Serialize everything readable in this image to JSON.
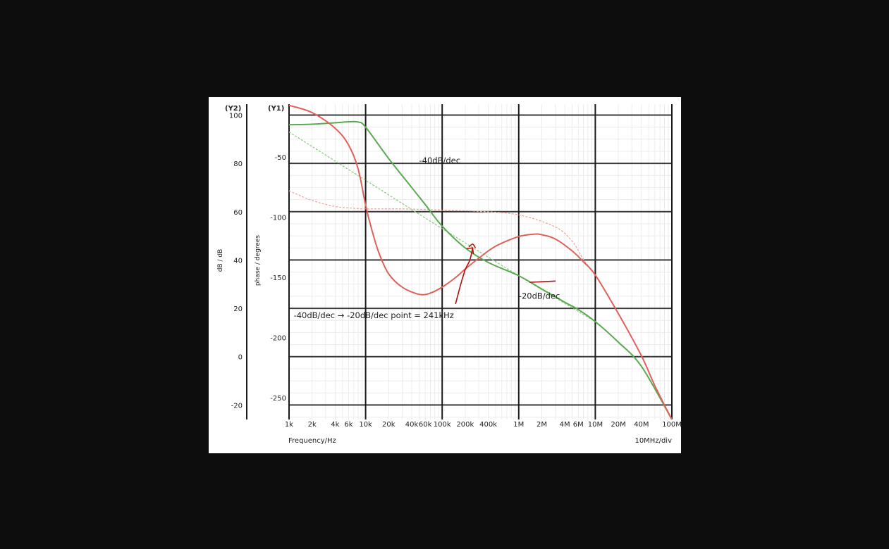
{
  "chart_data": {
    "type": "line",
    "x_scale": "log",
    "xlabel": "Frequency/Hz",
    "x_division_label": "10MHz/div",
    "xlim": [
      1000,
      100000000
    ],
    "x_ticks": [
      {
        "v": 1000,
        "label": "1k",
        "major": true
      },
      {
        "v": 2000,
        "label": "2k",
        "major": false
      },
      {
        "v": 4000,
        "label": "4k",
        "major": false
      },
      {
        "v": 6000,
        "label": "6k",
        "major": false
      },
      {
        "v": 10000,
        "label": "10k",
        "major": true
      },
      {
        "v": 20000,
        "label": "20k",
        "major": false
      },
      {
        "v": 40000,
        "label": "40k",
        "major": false
      },
      {
        "v": 60000,
        "label": "60k",
        "major": false
      },
      {
        "v": 100000,
        "label": "100k",
        "major": true
      },
      {
        "v": 200000,
        "label": "200k",
        "major": false
      },
      {
        "v": 400000,
        "label": "400k",
        "major": false
      },
      {
        "v": 1000000,
        "label": "1M",
        "major": true
      },
      {
        "v": 2000000,
        "label": "2M",
        "major": false
      },
      {
        "v": 4000000,
        "label": "4M",
        "major": false
      },
      {
        "v": 6000000,
        "label": "6M",
        "major": false
      },
      {
        "v": 10000000,
        "label": "10M",
        "major": true
      },
      {
        "v": 20000000,
        "label": "20M",
        "major": false
      },
      {
        "v": 40000000,
        "label": "40M",
        "major": false
      },
      {
        "v": 100000000,
        "label": "100M",
        "major": true
      }
    ],
    "y1": {
      "tag": "(Y1)",
      "label": "phase / degrees",
      "ylim": [
        -268,
        -6
      ],
      "ticks": [
        {
          "v": -50,
          "label": "-50"
        },
        {
          "v": -100,
          "label": "-100"
        },
        {
          "v": -150,
          "label": "-150"
        },
        {
          "v": -200,
          "label": "-200"
        },
        {
          "v": -250,
          "label": "-250"
        }
      ]
    },
    "y2": {
      "tag": "(Y2)",
      "label": "dB / dB",
      "ylim": [
        -26,
        104.5
      ],
      "ticks": [
        {
          "v": 100,
          "label": "100"
        },
        {
          "v": 80,
          "label": "80"
        },
        {
          "v": 60,
          "label": "60"
        },
        {
          "v": 40,
          "label": "40"
        },
        {
          "v": 20,
          "label": "20"
        },
        {
          "v": 0,
          "label": "0"
        },
        {
          "v": -20,
          "label": "-20"
        }
      ]
    },
    "gridlines": [
      100,
      80,
      60,
      40,
      20,
      0,
      -20
    ],
    "series": [
      {
        "axis": "y2",
        "color": "#5aaa50",
        "style": "solid",
        "x": [
          1000,
          2000,
          4000,
          6000,
          8000,
          10000,
          20000,
          40000,
          60000,
          100000,
          200000,
          400000,
          1000000,
          2000000,
          4000000,
          6000000,
          10000000,
          20000000,
          40000000,
          100000000
        ],
        "y": [
          96,
          96.2,
          96.8,
          97.2,
          97.1,
          95,
          82,
          70,
          63,
          54,
          45,
          39,
          33.5,
          28,
          22.5,
          19.5,
          14.5,
          6,
          -4,
          -26
        ]
      },
      {
        "axis": "y1",
        "color": "#e0605c",
        "style": "solid",
        "x": [
          1000,
          2000,
          4000,
          6000,
          8000,
          10000,
          12000,
          15000,
          20000,
          30000,
          50000,
          70000,
          100000,
          150000,
          200000,
          300000,
          500000,
          1000000,
          1600000,
          2000000,
          3000000,
          5000000,
          7000000,
          10000000,
          20000000,
          40000000,
          60000000,
          100000000
        ],
        "y": [
          -7,
          -13,
          -26,
          -40,
          -60,
          -90,
          -110,
          -130,
          -147,
          -158,
          -164,
          -163,
          -158,
          -150,
          -143,
          -134,
          -124,
          -116,
          -114,
          -114.5,
          -118,
          -128,
          -137,
          -148,
          -180,
          -215,
          -240,
          -268
        ]
      },
      {
        "axis": "y2",
        "color": "#8fcc85",
        "style": "dashed",
        "x": [
          1000,
          10000,
          100000,
          1000000,
          10000000
        ],
        "y": [
          93,
          73,
          53,
          33.5,
          14.5
        ]
      },
      {
        "axis": "y1",
        "color": "#f0a8a2",
        "style": "dashed",
        "x": [
          1000,
          2000,
          4000,
          7000,
          10000,
          30000,
          100000,
          300000,
          1000000,
          3000000,
          5000000,
          7000000,
          10000000
        ],
        "y": [
          -78,
          -86,
          -91,
          -92.5,
          -93,
          -93,
          -94,
          -95,
          -98,
          -108,
          -120,
          -135,
          -148
        ]
      }
    ],
    "annotations": [
      {
        "text": "-40dB/dec",
        "x": 50000,
        "y2": 80
      },
      {
        "text": "-20dB/dec",
        "x": 1000000,
        "y2": 24
      },
      {
        "text": "-40dB/dec → -20dB/dec point = 241kHz",
        "x": 1150,
        "y2": 16
      }
    ],
    "handwriting": [
      {
        "color": "#b01010",
        "x": [
          150000,
          175000,
          200000,
          230000,
          250000
        ],
        "y2": [
          22,
          30,
          36,
          40,
          45
        ]
      },
      {
        "color": "#b01010",
        "x": [
          225000,
          250000,
          270000
        ],
        "y2": [
          45.5,
          46.6,
          45.2
        ]
      },
      {
        "color": "#b01010",
        "x": [
          1400000,
          2000000,
          3000000
        ],
        "y2": [
          30.8,
          31,
          31.3
        ]
      }
    ]
  }
}
